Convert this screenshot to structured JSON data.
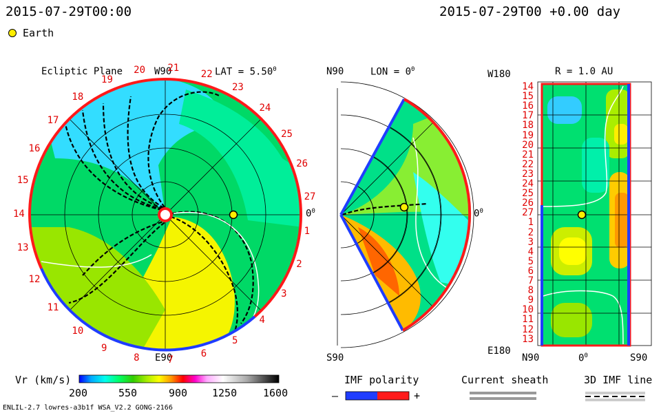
{
  "header": {
    "timestamp_left": "2015-07-29T00:00",
    "timestamp_right": "2015-07-29T00 +0.00 day",
    "earth_label": "Earth"
  },
  "colors": {
    "earth": "#ffee00",
    "sector_plus": "#ff1a1a",
    "sector_minus": "#1f3dff",
    "sheath": "#999999",
    "colorbar": [
      "#0000ff",
      "#00aaff",
      "#00ffee",
      "#00ff66",
      "#33cc00",
      "#99e600",
      "#ffff00",
      "#ff9900",
      "#ff0000",
      "#ff00cc",
      "#ff99ff",
      "#ffffff",
      "#cccccc",
      "#888888",
      "#333333",
      "#000000"
    ]
  },
  "chart_data": [
    {
      "type": "heatmap",
      "panel": "ecliptic",
      "title": "Ecliptic Plane",
      "lat_label": "LAT = 5.50",
      "lat_unit": "0",
      "top_label": "W90",
      "bottom_label": "E90",
      "right_label": "0",
      "right_unit": "0",
      "sector_labels": [
        "14",
        "15",
        "16",
        "17",
        "18",
        "19",
        "20",
        "21",
        "22",
        "23",
        "24",
        "25",
        "26",
        "27",
        "1",
        "2",
        "3",
        "4",
        "5",
        "6",
        "7",
        "8",
        "9",
        "10",
        "11",
        "12",
        "13"
      ]
    },
    {
      "type": "heatmap",
      "panel": "meridional",
      "lon_label": "LON = 0",
      "lon_unit": "0",
      "top_label": "N90",
      "bottom_label": "S90",
      "right_label": "0",
      "right_unit": "0"
    },
    {
      "type": "heatmap",
      "panel": "radial",
      "r_label": "R = 1.0 AU",
      "top_left_label": "W180",
      "bottom_left_label": "E180",
      "x_tick_labels": [
        "N90",
        "0",
        "S90"
      ],
      "x_center_unit": "0",
      "y_tick_labels": [
        "14",
        "15",
        "16",
        "17",
        "18",
        "19",
        "20",
        "21",
        "22",
        "23",
        "24",
        "25",
        "26",
        "27",
        "1",
        "2",
        "3",
        "4",
        "5",
        "6",
        "7",
        "8",
        "9",
        "10",
        "11",
        "12",
        "13"
      ]
    }
  ],
  "colorbar": {
    "label": "Vr (km/s)",
    "ticks": [
      "200",
      "550",
      "900",
      "1250",
      "1600"
    ],
    "min": 200,
    "max": 1600
  },
  "legend": {
    "imf_polarity": "IMF polarity",
    "minus": "–",
    "plus": "+",
    "current_sheath": "Current sheath",
    "imf_line": "3D IMF line"
  },
  "footer": {
    "model": "ENLIL-2.7 lowres-a3b1f WSA_V2.2 GONG-2166"
  }
}
